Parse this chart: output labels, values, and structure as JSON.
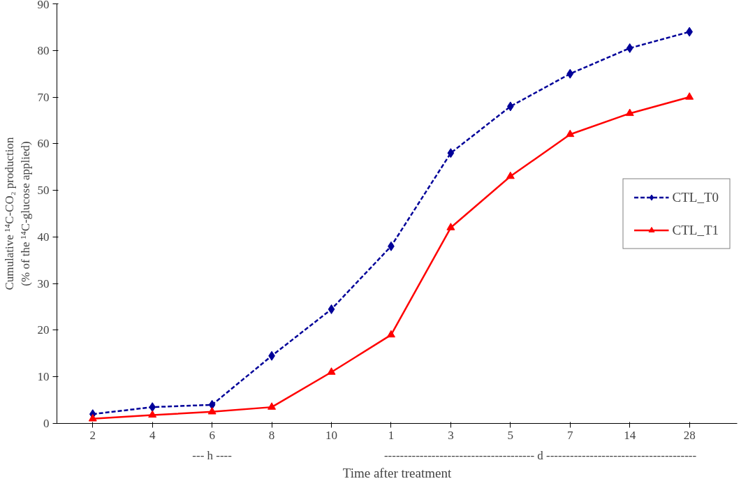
{
  "chart_data": {
    "type": "line",
    "xlabel": "Time after treatment",
    "ylabel": "Cumulative ¹⁴C-CO₂ production\n(% of the ¹⁴C-glucose applied)",
    "categories": [
      "2",
      "4",
      "6",
      "8",
      "10",
      "1",
      "3",
      "5",
      "7",
      "14",
      "28"
    ],
    "series": [
      {
        "name": "CTL_T0",
        "color": "#000099",
        "marker": "diamond",
        "line_style": "dashed",
        "values": [
          2,
          3.5,
          4,
          14.5,
          24.5,
          38,
          58,
          68,
          75,
          80.5,
          84
        ]
      },
      {
        "name": "CTL_T1",
        "color": "#ff0000",
        "marker": "triangle",
        "line_style": "solid",
        "values": [
          1,
          1.8,
          2.5,
          3.5,
          11,
          19,
          42,
          53,
          62,
          66.5,
          70
        ]
      }
    ],
    "ylim": [
      0,
      90
    ],
    "yticks": [
      0,
      10,
      20,
      30,
      40,
      50,
      60,
      70,
      80,
      90
    ],
    "grid": false,
    "legend": "right",
    "annotations": [
      "--- h ----",
      "-------------------------------------- d --------------------------------------"
    ]
  }
}
